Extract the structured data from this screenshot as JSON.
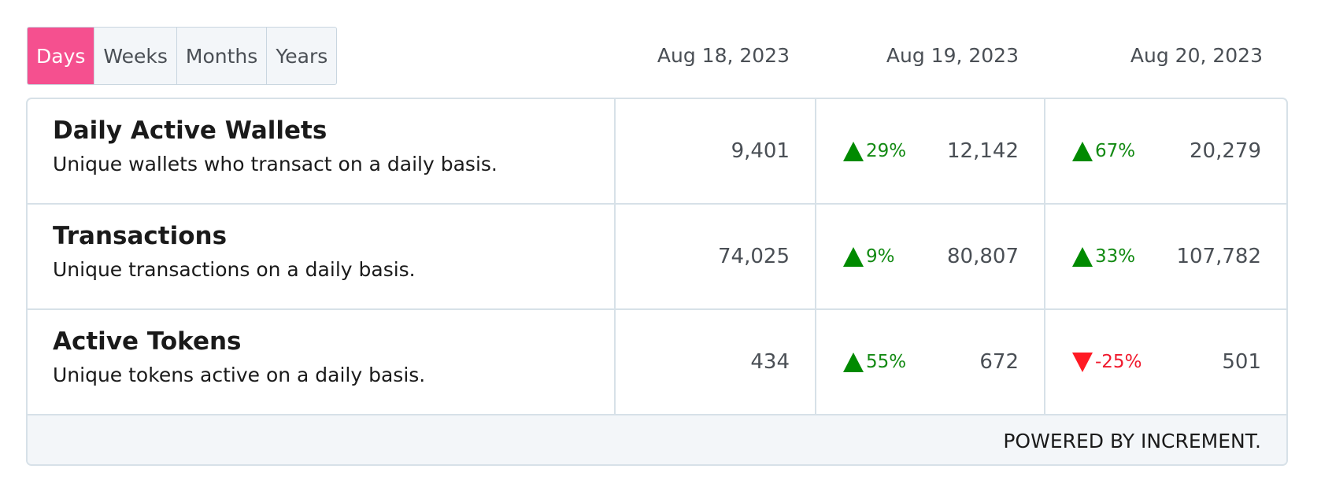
{
  "tabs": [
    {
      "label": "Days",
      "active": true
    },
    {
      "label": "Weeks",
      "active": false
    },
    {
      "label": "Months",
      "active": false
    },
    {
      "label": "Years",
      "active": false
    }
  ],
  "dates": [
    "Aug 18, 2023",
    "Aug 19, 2023",
    "Aug 20, 2023"
  ],
  "metrics": [
    {
      "title": "Daily Active Wallets",
      "description": "Unique wallets who transact on a daily basis.",
      "values": [
        "9,401",
        "12,142",
        "20,279"
      ],
      "changes": [
        null,
        "29%",
        "67%"
      ],
      "directions": [
        null,
        "up",
        "up"
      ]
    },
    {
      "title": "Transactions",
      "description": "Unique transactions on a daily basis.",
      "values": [
        "74,025",
        "80,807",
        "107,782"
      ],
      "changes": [
        null,
        "9%",
        "33%"
      ],
      "directions": [
        null,
        "up",
        "up"
      ]
    },
    {
      "title": "Active Tokens",
      "description": "Unique tokens active on a daily basis.",
      "values": [
        "434",
        "672",
        "501"
      ],
      "changes": [
        null,
        "55%",
        "-25%"
      ],
      "directions": [
        null,
        "up",
        "down"
      ]
    }
  ],
  "footer": "POWERED BY INCREMENT.",
  "colors": {
    "accent": "#f5508f",
    "up": "#008a00",
    "down": "#ff1a24"
  },
  "icons": {
    "up": "triangle-up-icon",
    "down": "triangle-down-icon"
  }
}
